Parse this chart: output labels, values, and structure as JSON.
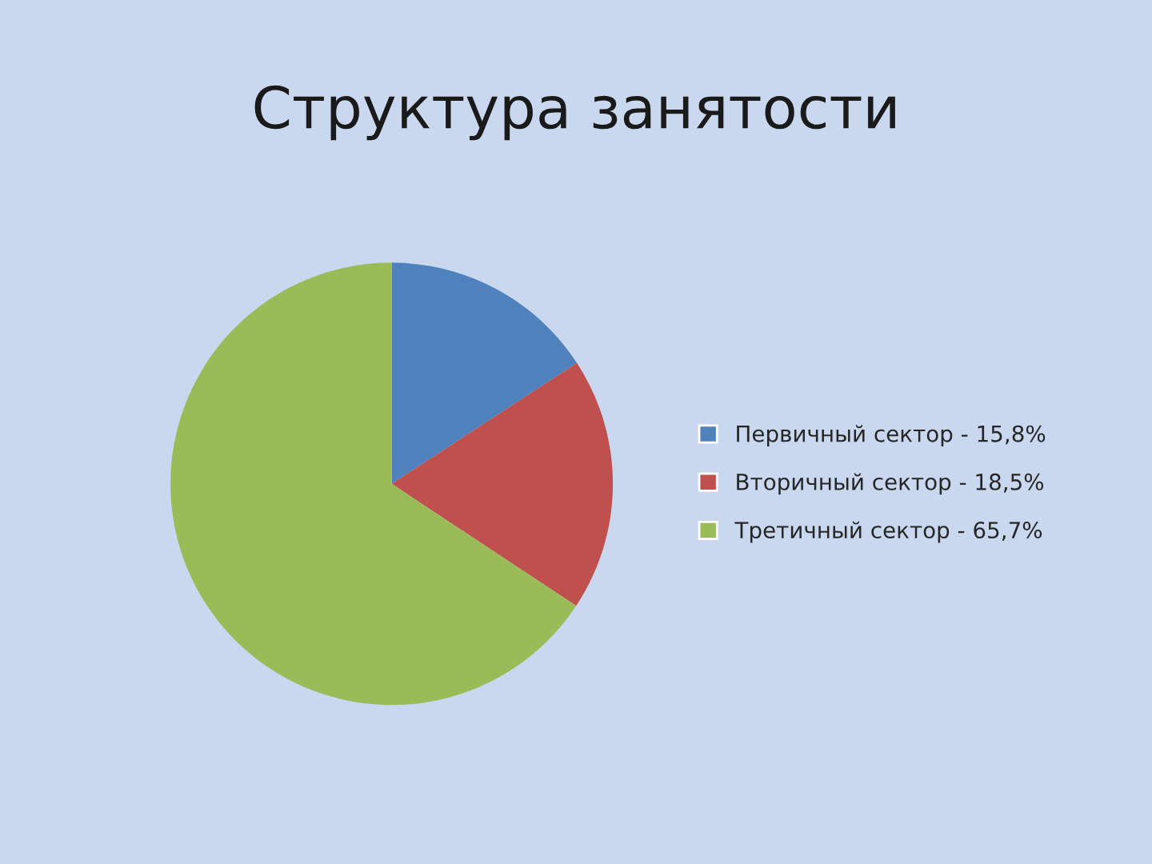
{
  "chart_data": {
    "type": "pie",
    "title": "Структура занятости",
    "categories": [
      "Первичный сектор - 15,8%",
      "Вторичный сектор - 18,5%",
      "Третичный сектор - 65,7%"
    ],
    "values": [
      15.8,
      18.5,
      65.7
    ],
    "colors": [
      "#4f81bd",
      "#c0504d",
      "#9bbb59"
    ],
    "legend": "right"
  }
}
